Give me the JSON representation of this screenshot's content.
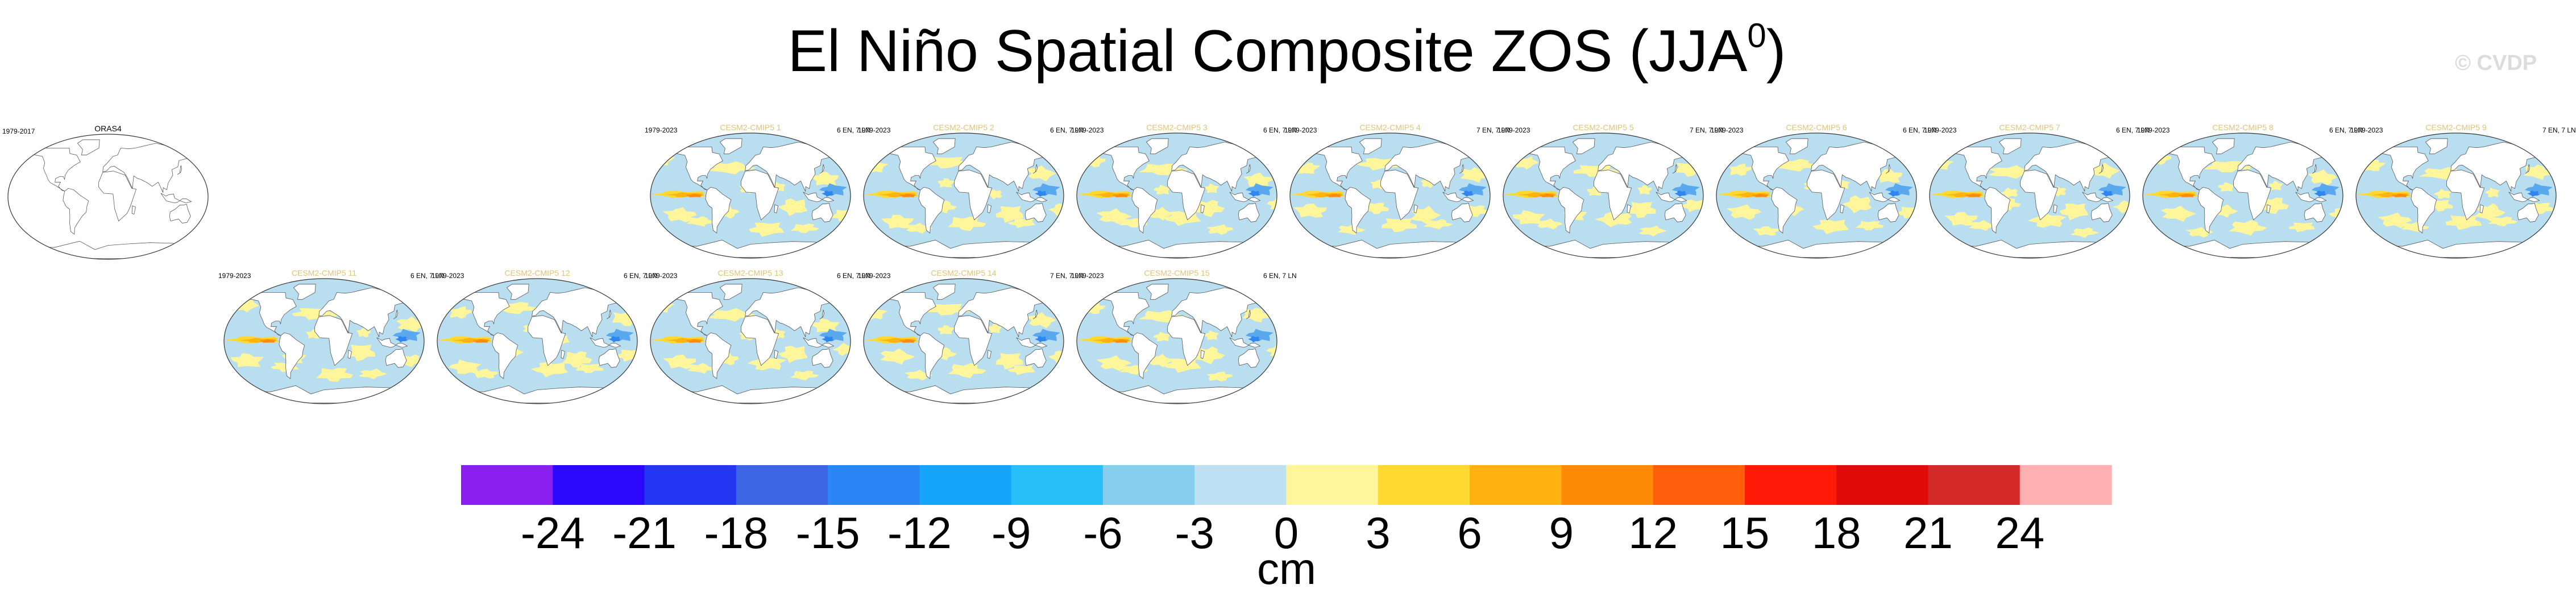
{
  "title": {
    "main": "El Niño Spatial Composite ZOS (JJA",
    "sup": "0",
    "close": ")"
  },
  "watermark": "© CVDP",
  "colors": {
    "land": "#ffffff",
    "coast": "#555555",
    "ocean_pos_weak": "#fff59a",
    "ocean_neg_weak": "#b9def0",
    "title_model": "#e0c37a"
  },
  "chart_data": {
    "type": "heatmap",
    "variable": "ZOS",
    "season": "JJA",
    "units": "cm",
    "panels": [
      {
        "name": "ORAS4",
        "period": "1979-2017",
        "count": "",
        "observed": true
      },
      {
        "name": "CESM2-CMIP5 1",
        "period": "1979-2023",
        "count": "6 EN, 7 LN"
      },
      {
        "name": "CESM2-CMIP5 2",
        "period": "1979-2023",
        "count": "6 EN, 7 LN"
      },
      {
        "name": "CESM2-CMIP5 3",
        "period": "1979-2023",
        "count": "6 EN, 7 LN"
      },
      {
        "name": "CESM2-CMIP5 4",
        "period": "1979-2023",
        "count": "7 EN, 7 LN"
      },
      {
        "name": "CESM2-CMIP5 5",
        "period": "1979-2023",
        "count": "7 EN, 7 LN"
      },
      {
        "name": "CESM2-CMIP5 6",
        "period": "1979-2023",
        "count": "6 EN, 7 LN"
      },
      {
        "name": "CESM2-CMIP5 7",
        "period": "1979-2023",
        "count": "6 EN, 7 LN"
      },
      {
        "name": "CESM2-CMIP5 8",
        "period": "1979-2023",
        "count": "6 EN, 7 LN"
      },
      {
        "name": "CESM2-CMIP5 9",
        "period": "1979-2023",
        "count": "7 EN, 7 LN"
      },
      {
        "name": "CESM2-CMIP5 11",
        "period": "1979-2023",
        "count": "6 EN, 7 LN"
      },
      {
        "name": "CESM2-CMIP5 12",
        "period": "1979-2023",
        "count": "6 EN, 7 LN"
      },
      {
        "name": "CESM2-CMIP5 13",
        "period": "1979-2023",
        "count": "6 EN, 7 LN"
      },
      {
        "name": "CESM2-CMIP5 14",
        "period": "1979-2023",
        "count": "7 EN, 7 LN"
      },
      {
        "name": "CESM2-CMIP5 15",
        "period": "1979-2023",
        "count": "6 EN, 7 LN"
      }
    ],
    "colorbar": {
      "ticks": [
        "-24",
        "-21",
        "-18",
        "-15",
        "-12",
        "-9",
        "-6",
        "-3",
        "0",
        "3",
        "6",
        "9",
        "12",
        "15",
        "18",
        "21",
        "24"
      ],
      "colors": [
        "#8a1ff0",
        "#2b08fa",
        "#2337f2",
        "#3c65e3",
        "#2b86f5",
        "#15a6fb",
        "#28c0f8",
        "#86cdee",
        "#bde1f3",
        "#fff59a",
        "#ffd832",
        "#ffb210",
        "#ff8a05",
        "#ff5f0a",
        "#ff1a08",
        "#e00b0b",
        "#d42a2a",
        "#ffb0b0"
      ],
      "label": "cm"
    }
  }
}
